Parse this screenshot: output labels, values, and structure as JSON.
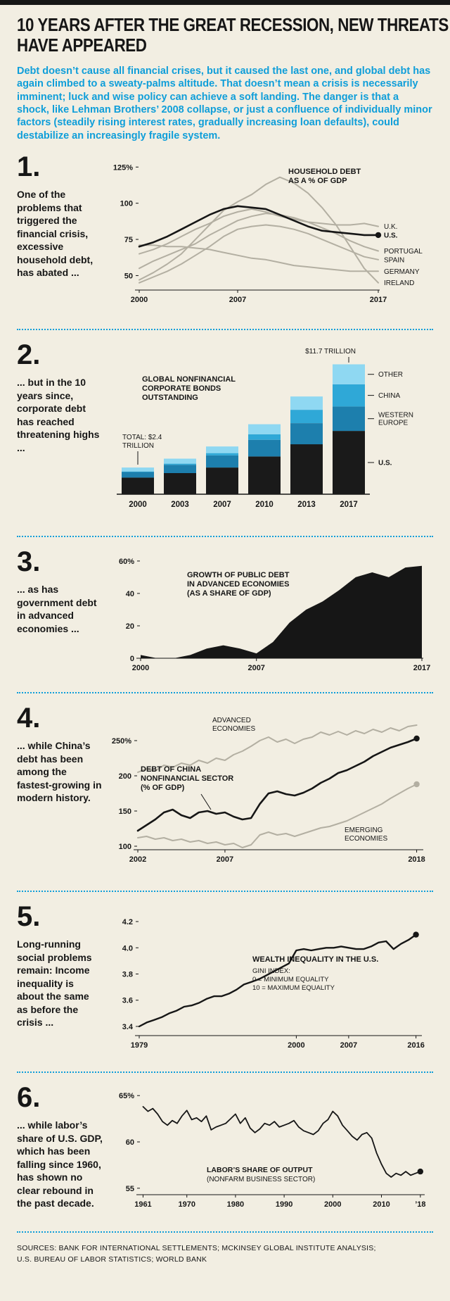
{
  "page": {
    "title_line1": "10 YEARS AFTER THE GREAT RECESSION, NEW THREATS",
    "title_line2": "HAVE APPEARED",
    "intro": "Debt doesn’t cause all financial crises, but it caused the last one, and global debt has again climbed to a sweaty-palms altitude. That doesn’t mean a crisis is necessarily imminent; luck and wise policy can achieve a soft landing. The danger is that a shock, like Lehman Brothers’ 2008 collapse, or just a confluence of individually minor factors (steadily rising interest rates, gradually increasing loan defaults), could destabilize an increasingly fragile system.",
    "sources_line1": "SOURCES: BANK FOR INTERNATIONAL SETTLEMENTS; MCKINSEY GLOBAL INSTITUTE ANALYSIS;",
    "sources_line2": "U.S. BUREAU OF LABOR STATISTICS; WORLD BANK"
  },
  "colors": {
    "background": "#f2eee2",
    "ink": "#161616",
    "accent_blue": "#0f9ed9",
    "gray_line": "#b3afa2",
    "us": "#1a1a1a",
    "western_europe": "#1d7fad",
    "china": "#2fa8d7",
    "other": "#8fd8f2"
  },
  "sections": [
    {
      "num": "1.",
      "text": "One of the problems that triggered the financial crisis, excessive household debt, has abated ..."
    },
    {
      "num": "2.",
      "text": "... but in the 10 years since, corporate debt has reached threatening highs ..."
    },
    {
      "num": "3.",
      "text": "... as has government debt in advanced economies ..."
    },
    {
      "num": "4.",
      "text": "... while China’s debt has been among the fastest-growing in modern history."
    },
    {
      "num": "5.",
      "text": "Long-running social problems remain: Income inequality is about the same as before the crisis ..."
    },
    {
      "num": "6.",
      "text": "... while labor’s share of U.S. GDP, which has been falling since 1960, has shown no clear rebound in the past decade."
    }
  ],
  "chart_data": [
    {
      "type": "line",
      "title": "HOUSEHOLD DEBT AS A % OF GDP",
      "x": [
        2000,
        2001,
        2002,
        2003,
        2004,
        2005,
        2006,
        2007,
        2008,
        2009,
        2010,
        2011,
        2012,
        2013,
        2014,
        2015,
        2016,
        2017
      ],
      "xlim": [
        2000,
        2017
      ],
      "ylim": [
        40,
        130
      ],
      "series": [
        {
          "name": "U.K.",
          "values": [
            65,
            68,
            72,
            77,
            82,
            86,
            91,
            94,
            96,
            94,
            91,
            89,
            87,
            86,
            85,
            85,
            86,
            84
          ]
        },
        {
          "name": "U.S.",
          "emphasis": true,
          "end_dot": true,
          "values": [
            70,
            73,
            77,
            82,
            87,
            92,
            96,
            98,
            97,
            96,
            92,
            88,
            84,
            81,
            80,
            79,
            78,
            78
          ]
        },
        {
          "name": "PORTUGAL",
          "values": [
            55,
            60,
            64,
            68,
            72,
            78,
            83,
            88,
            91,
            93,
            92,
            90,
            87,
            83,
            79,
            74,
            70,
            67
          ]
        },
        {
          "name": "SPAIN",
          "values": [
            45,
            49,
            53,
            58,
            64,
            70,
            77,
            82,
            84,
            85,
            84,
            82,
            79,
            75,
            71,
            67,
            63,
            61
          ]
        },
        {
          "name": "GERMANY",
          "values": [
            71,
            71,
            70,
            70,
            69,
            68,
            66,
            64,
            62,
            61,
            59,
            57,
            56,
            55,
            54,
            53,
            53,
            53
          ]
        },
        {
          "name": "IRELAND",
          "values": [
            47,
            52,
            58,
            65,
            75,
            85,
            95,
            101,
            106,
            113,
            118,
            114,
            107,
            97,
            85,
            70,
            55,
            45
          ]
        }
      ],
      "xticks": [
        {
          "v": 2000,
          "label": "2000"
        },
        {
          "v": 2007,
          "label": "2007"
        },
        {
          "v": 2017,
          "label": "2017"
        }
      ],
      "yticks": [
        {
          "v": 50,
          "label": "50"
        },
        {
          "v": 75,
          "label": "75"
        },
        {
          "v": 100,
          "label": "100"
        },
        {
          "v": 125,
          "label": "125%"
        }
      ],
      "annotations": [
        {
          "lines": [
            "HOUSEHOLD DEBT",
            "AS A % OF GDP"
          ],
          "bold": true
        }
      ]
    },
    {
      "type": "stacked-bar",
      "title": "GLOBAL NONFINANCIAL CORPORATE BONDS OUTSTANDING",
      "categories": [
        "2000",
        "2003",
        "2007",
        "2010",
        "2013",
        "2017"
      ],
      "ylim": [
        0,
        12.3
      ],
      "units": "$ trillions",
      "series": [
        {
          "name": "U.S.",
          "color_key": "us",
          "values": [
            1.5,
            1.9,
            2.4,
            3.4,
            4.5,
            5.7
          ]
        },
        {
          "name": "WESTERN EUROPE",
          "color_key": "western_europe",
          "values": [
            0.5,
            0.75,
            1.1,
            1.5,
            1.9,
            2.2
          ]
        },
        {
          "name": "CHINA",
          "color_key": "china",
          "values": [
            0.05,
            0.1,
            0.2,
            0.5,
            1.2,
            2.0
          ]
        },
        {
          "name": "OTHER",
          "color_key": "other",
          "values": [
            0.35,
            0.45,
            0.6,
            0.9,
            1.2,
            1.8
          ]
        }
      ],
      "right_labels": [
        {
          "series": "OTHER",
          "lines": [
            "OTHER"
          ]
        },
        {
          "series": "CHINA",
          "lines": [
            "CHINA"
          ]
        },
        {
          "series": "WESTERN EUROPE",
          "lines": [
            "WESTERN",
            "EUROPE"
          ]
        },
        {
          "series": "U.S.",
          "lines": [
            "U.S."
          ],
          "bold": true
        }
      ],
      "annotations": [
        {
          "lines": [
            "GLOBAL NONFINANCIAL",
            "CORPORATE BONDS",
            "OUTSTANDING"
          ],
          "bold": true
        },
        {
          "lines": [
            "TOTAL: $2.4",
            "TRILLION"
          ]
        },
        {
          "lines": [
            "$11.7 TRILLION"
          ]
        }
      ]
    },
    {
      "type": "area",
      "title": "GROWTH OF PUBLIC DEBT IN ADVANCED ECONOMIES (AS A SHARE OF GDP)",
      "x": [
        2000,
        2001,
        2002,
        2003,
        2004,
        2005,
        2006,
        2007,
        2008,
        2009,
        2010,
        2011,
        2012,
        2013,
        2014,
        2015,
        2016,
        2017
      ],
      "values": [
        2,
        0,
        0,
        2,
        6,
        8,
        6,
        3,
        10,
        22,
        30,
        35,
        42,
        50,
        53,
        50,
        56,
        57
      ],
      "xlim": [
        2000,
        2017
      ],
      "ylim": [
        0,
        63
      ],
      "xticks": [
        {
          "v": 2000,
          "label": "2000"
        },
        {
          "v": 2007,
          "label": "2007"
        },
        {
          "v": 2017,
          "label": "2017"
        }
      ],
      "yticks": [
        {
          "v": 0,
          "label": "0"
        },
        {
          "v": 20,
          "label": "20"
        },
        {
          "v": 40,
          "label": "40"
        },
        {
          "v": 60,
          "label": "60%"
        }
      ],
      "annotations": [
        {
          "lines": [
            "GROWTH OF PUBLIC DEBT",
            "IN ADVANCED ECONOMIES",
            "(AS A SHARE OF GDP)"
          ],
          "bold": true
        }
      ]
    },
    {
      "type": "line",
      "title": "DEBT OF CHINA NONFINANCIAL SECTOR (% OF GDP)",
      "x": [
        2002,
        2002.5,
        2003,
        2003.5,
        2004,
        2004.5,
        2005,
        2005.5,
        2006,
        2006.5,
        2007,
        2007.5,
        2008,
        2008.5,
        2009,
        2009.5,
        2010,
        2010.5,
        2011,
        2011.5,
        2012,
        2012.5,
        2013,
        2013.5,
        2014,
        2014.5,
        2015,
        2015.5,
        2016,
        2016.5,
        2017,
        2017.5,
        2018
      ],
      "xlim": [
        2002,
        2018.3
      ],
      "ylim": [
        95,
        290
      ],
      "series": [
        {
          "name": "ADVANCED ECONOMIES",
          "values": [
            205,
            210,
            207,
            215,
            212,
            218,
            215,
            222,
            218,
            225,
            222,
            230,
            235,
            242,
            250,
            255,
            248,
            252,
            246,
            252,
            255,
            262,
            258,
            263,
            258,
            264,
            260,
            266,
            262,
            268,
            264,
            270,
            272
          ]
        },
        {
          "name": "EMERGING ECONOMIES",
          "end_dot": true,
          "values": [
            112,
            114,
            110,
            112,
            108,
            110,
            106,
            108,
            104,
            106,
            102,
            104,
            98,
            102,
            116,
            120,
            116,
            118,
            114,
            118,
            122,
            126,
            128,
            132,
            136,
            142,
            148,
            154,
            160,
            168,
            175,
            182,
            188
          ]
        },
        {
          "name": "CHINA",
          "emphasis": true,
          "end_dot": true,
          "values": [
            122,
            130,
            138,
            148,
            152,
            144,
            140,
            148,
            150,
            146,
            148,
            142,
            138,
            140,
            160,
            175,
            178,
            174,
            172,
            176,
            182,
            190,
            196,
            204,
            208,
            214,
            220,
            228,
            234,
            240,
            244,
            248,
            253
          ]
        }
      ],
      "xticks": [
        {
          "v": 2002,
          "label": "2002"
        },
        {
          "v": 2007,
          "label": "2007"
        },
        {
          "v": 2018,
          "label": "2018"
        }
      ],
      "yticks": [
        {
          "v": 100,
          "label": "100"
        },
        {
          "v": 150,
          "label": "150"
        },
        {
          "v": 200,
          "label": "200"
        },
        {
          "v": 250,
          "label": "250%"
        }
      ],
      "annotations": [
        {
          "lines": [
            "DEBT OF CHINA",
            "NONFINANCIAL SECTOR",
            "(% OF GDP)"
          ],
          "bold": true
        },
        {
          "lines": [
            "ADVANCED",
            "ECONOMIES"
          ]
        },
        {
          "lines": [
            "EMERGING",
            "ECONOMIES"
          ]
        }
      ]
    },
    {
      "type": "line",
      "title": "WEALTH INEQUALITY IN THE U.S.",
      "x": [
        1979,
        1980,
        1981,
        1982,
        1983,
        1984,
        1985,
        1986,
        1987,
        1988,
        1989,
        1990,
        1991,
        1992,
        1993,
        1994,
        1995,
        1996,
        1997,
        1998,
        1999,
        2000,
        2001,
        2002,
        2003,
        2004,
        2005,
        2006,
        2007,
        2008,
        2009,
        2010,
        2011,
        2012,
        2013,
        2014,
        2015,
        2016
      ],
      "xlim": [
        1979,
        2016.6
      ],
      "ylim": [
        3.33,
        4.27
      ],
      "series": [
        {
          "name": "GINI INDEX",
          "emphasis": true,
          "end_dot": true,
          "values": [
            3.4,
            3.43,
            3.45,
            3.47,
            3.5,
            3.52,
            3.55,
            3.56,
            3.58,
            3.61,
            3.63,
            3.63,
            3.65,
            3.68,
            3.72,
            3.74,
            3.76,
            3.79,
            3.82,
            3.85,
            3.88,
            3.98,
            3.99,
            3.98,
            3.99,
            4.0,
            4.0,
            4.01,
            4.0,
            3.99,
            3.99,
            4.01,
            4.04,
            4.05,
            3.99,
            4.03,
            4.06,
            4.1
          ]
        }
      ],
      "xticks": [
        {
          "v": 1979,
          "label": "1979"
        },
        {
          "v": 2000,
          "label": "2000"
        },
        {
          "v": 2007,
          "label": "2007"
        },
        {
          "v": 2016,
          "label": "2016"
        }
      ],
      "yticks": [
        {
          "v": 3.4,
          "label": "3.4"
        },
        {
          "v": 3.6,
          "label": "3.6"
        },
        {
          "v": 3.8,
          "label": "3.8"
        },
        {
          "v": 4.0,
          "label": "4.0"
        },
        {
          "v": 4.2,
          "label": "4.2"
        }
      ],
      "annotations": [
        {
          "lines": [
            "WEALTH INEQUALITY IN THE U.S."
          ],
          "bold": true
        },
        {
          "lines": [
            "GINI INDEX:",
            "0 = MINIMUM EQUALITY",
            "10 = MAXIMUM EQUALITY"
          ]
        }
      ]
    },
    {
      "type": "line",
      "title": "LABOR’S SHARE OF OUTPUT (NONFARM BUSINESS SECTOR)",
      "x": [
        1961,
        1962,
        1963,
        1964,
        1965,
        1966,
        1967,
        1968,
        1969,
        1970,
        1971,
        1972,
        1973,
        1974,
        1975,
        1976,
        1977,
        1978,
        1979,
        1980,
        1981,
        1982,
        1983,
        1984,
        1985,
        1986,
        1987,
        1988,
        1989,
        1990,
        1991,
        1992,
        1993,
        1994,
        1995,
        1996,
        1997,
        1998,
        1999,
        2000,
        2001,
        2002,
        2003,
        2004,
        2005,
        2006,
        2007,
        2008,
        2009,
        2010,
        2011,
        2012,
        2013,
        2014,
        2015,
        2016,
        2017,
        2018
      ],
      "xlim": [
        1960.5,
        2018.6
      ],
      "ylim": [
        54.3,
        65.7
      ],
      "series": [
        {
          "name": "LABOR SHARE",
          "emphasis": true,
          "end_dot": true,
          "values": [
            63.8,
            63.3,
            63.6,
            63.0,
            62.2,
            61.8,
            62.3,
            62.0,
            62.8,
            63.4,
            62.4,
            62.6,
            62.2,
            62.8,
            61.3,
            61.6,
            61.8,
            62.0,
            62.5,
            63.0,
            62.0,
            62.6,
            61.5,
            61.0,
            61.4,
            62.0,
            61.8,
            62.2,
            61.6,
            61.8,
            62.0,
            62.3,
            61.6,
            61.2,
            61.0,
            60.8,
            61.2,
            62.0,
            62.4,
            63.3,
            62.8,
            61.8,
            61.2,
            60.6,
            60.2,
            60.8,
            61.0,
            60.4,
            58.8,
            57.6,
            56.6,
            56.2,
            56.6,
            56.4,
            56.8,
            56.4,
            56.6,
            56.8
          ]
        }
      ],
      "xticks": [
        {
          "v": 1961,
          "label": "1961"
        },
        {
          "v": 1970,
          "label": "1970"
        },
        {
          "v": 1980,
          "label": "1980"
        },
        {
          "v": 1990,
          "label": "1990"
        },
        {
          "v": 2000,
          "label": "2000"
        },
        {
          "v": 2010,
          "label": "2010"
        },
        {
          "v": 2018,
          "label": "’18"
        }
      ],
      "yticks": [
        {
          "v": 55,
          "label": "55"
        },
        {
          "v": 60,
          "label": "60"
        },
        {
          "v": 65,
          "label": "65%"
        }
      ],
      "annotations": [
        {
          "lines": [
            "LABOR’S SHARE OF OUTPUT"
          ],
          "bold": true
        },
        {
          "lines": [
            "(NONFARM BUSINESS SECTOR)"
          ]
        }
      ]
    }
  ]
}
